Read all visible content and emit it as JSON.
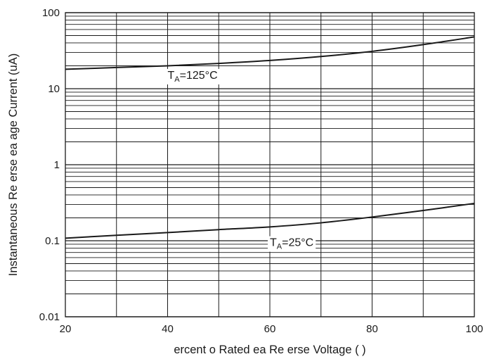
{
  "chart_data": {
    "type": "line",
    "xlabel": "ercent o  Rated  ea  Re erse Voltage (  )",
    "ylabel": "Instantaneous Re erse  ea  age Current (uA)",
    "xlim": [
      20,
      100
    ],
    "ylim": [
      0.01,
      100
    ],
    "yscale": "log",
    "grid": true,
    "x_ticks": [
      "20",
      "40",
      "60",
      "80",
      "100"
    ],
    "y_ticks": [
      "0.01",
      "0.1",
      "1",
      "10",
      "100"
    ],
    "series": [
      {
        "name": "TA=125°C",
        "x": [
          20,
          30,
          40,
          50,
          60,
          70,
          80,
          90,
          100
        ],
        "y": [
          18,
          19,
          20,
          21.5,
          23.5,
          26.5,
          31,
          38,
          48
        ]
      },
      {
        "name": "TA=25°C",
        "x": [
          20,
          30,
          40,
          50,
          60,
          70,
          80,
          90,
          100
        ],
        "y": [
          0.108,
          0.118,
          0.128,
          0.14,
          0.152,
          0.172,
          0.205,
          0.25,
          0.31
        ]
      }
    ],
    "annotations": [
      {
        "main": "T",
        "sub": "A",
        "rest": "=125°C",
        "x": 40,
        "y": 13.5
      },
      {
        "main": "T",
        "sub": "A",
        "rest": "=25°C",
        "x": 60,
        "y": 0.085
      }
    ],
    "colors": {
      "line": "#1a1a1a",
      "grid": "#1a1a1a",
      "background": "#ffffff"
    }
  }
}
